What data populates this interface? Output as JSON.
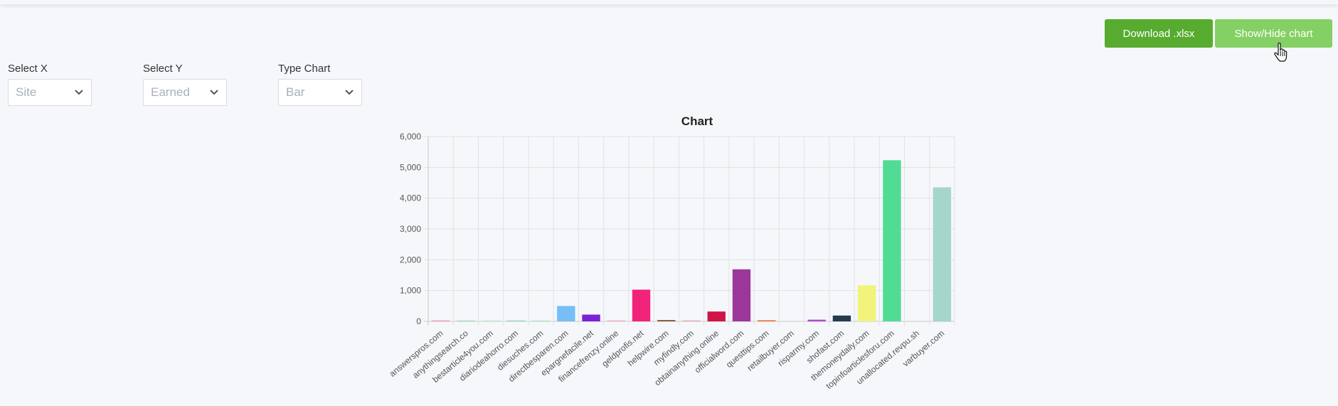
{
  "toolbar": {
    "download_label": "Download .xlsx",
    "toggle_label": "Show/Hide chart"
  },
  "controls": {
    "x": {
      "label": "Select X",
      "value": "Site"
    },
    "y": {
      "label": "Select Y",
      "value": "Earned"
    },
    "type": {
      "label": "Type Chart",
      "value": "Bar"
    }
  },
  "chart_data": {
    "type": "bar",
    "title": "Chart",
    "xlabel": "",
    "ylabel": "",
    "ylim": [
      0,
      6000
    ],
    "yticks": [
      0,
      1000,
      2000,
      3000,
      4000,
      5000,
      6000
    ],
    "ytick_labels": [
      "0",
      "1,000",
      "2,000",
      "3,000",
      "4,000",
      "5,000",
      "6,000"
    ],
    "grid": true,
    "categories": [
      "answerspros.com",
      "anythingsearch.co",
      "bestarticle4you.com",
      "diariodeahorro.com",
      "diesuches.com",
      "directbesparen.com",
      "epargnefacile.net",
      "financefrenzy.online",
      "geldprofis.net",
      "helpwire.com",
      "myfindly.com",
      "obtainanything.online",
      "officialword.com",
      "questtips.com",
      "retailbuyer.com",
      "risparmy.com",
      "shofast.com",
      "themoneydaily.com",
      "topinfoarticlesforu.com",
      "unallocated.revpu.sh",
      "varbuyer.com"
    ],
    "values": [
      12,
      8,
      10,
      25,
      8,
      500,
      220,
      8,
      1030,
      45,
      6,
      320,
      1690,
      40,
      0,
      55,
      190,
      1170,
      5230,
      0,
      4350
    ],
    "colors": [
      "#f4a3b5",
      "#b0e3c2",
      "#c9ead2",
      "#a0dcc2",
      "#bfe8cc",
      "#76bef7",
      "#7a22d6",
      "#f2b3c5",
      "#f2237a",
      "#8b5a3c",
      "#e9b0bd",
      "#cf1547",
      "#9b379b",
      "#f07a3a",
      "#cccccc",
      "#b543cf",
      "#233b4d",
      "#f1f37a",
      "#52db95",
      "#cccccc",
      "#a5d6cb"
    ]
  }
}
